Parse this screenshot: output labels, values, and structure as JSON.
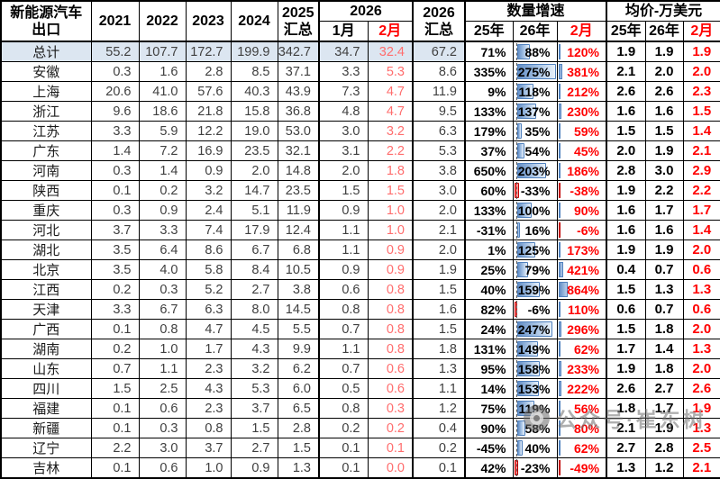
{
  "colors": {
    "total_row_fill": "#dce6f1",
    "databar_blue": "#638ec6",
    "databar_negative_red": "#ff4646",
    "accent_red_text": "#ff0000",
    "soft_red_text": "#ff6d6d",
    "number_text": "#3f3f3f"
  },
  "watermark": {
    "icon": "wechat-public-account-logo",
    "text": "公众号·崔东树"
  },
  "chart_data": {
    "type": "table",
    "header": {
      "corner_line1": "新能源汽车",
      "corner_line2": "出口",
      "years": [
        "2021",
        "2022",
        "2023",
        "2024"
      ],
      "total_2025_line1": "2025",
      "total_2025_line2": "汇总",
      "group_2026": "2026",
      "month_jan": "1月",
      "month_feb": "2月",
      "total_2026_line1": "2026",
      "total_2026_line2": "汇总",
      "growth_group": "数量增速",
      "growth_cols": [
        "25年",
        "26年",
        "2月"
      ],
      "price_group": "均价-万美元",
      "price_cols": [
        "25年",
        "26年",
        "2月"
      ]
    },
    "columns": [
      "新能源汽车出口",
      "2021",
      "2022",
      "2023",
      "2024",
      "2025汇总",
      "2026 1月",
      "2026 2月",
      "2026汇总",
      "数量增速 25年",
      "数量增速 26年",
      "数量增速 2月",
      "均价 25年",
      "均价 26年",
      "均价 2月"
    ],
    "rows": [
      [
        "总计",
        "55.2",
        "107.7",
        "172.7",
        "199.9",
        "342.7",
        "34.7",
        "32.4",
        "67.2",
        "71%",
        "88%",
        "120%",
        "1.9",
        "1.9",
        "1.9"
      ],
      [
        "安徽",
        "0.3",
        "1.6",
        "2.8",
        "8.5",
        "37.1",
        "3.3",
        "5.3",
        "8.6",
        "335%",
        "275%",
        "381%",
        "2.1",
        "2.0",
        "2.0"
      ],
      [
        "上海",
        "20.6",
        "41.0",
        "57.6",
        "40.3",
        "43.9",
        "7.3",
        "4.7",
        "11.9",
        "9%",
        "118%",
        "212%",
        "2.6",
        "2.6",
        "2.3"
      ],
      [
        "浙江",
        "9.6",
        "18.6",
        "21.8",
        "15.8",
        "36.8",
        "4.8",
        "4.7",
        "9.5",
        "133%",
        "137%",
        "230%",
        "1.6",
        "1.6",
        "1.5"
      ],
      [
        "江苏",
        "3.3",
        "5.9",
        "12.2",
        "19.0",
        "53.0",
        "3.0",
        "3.2",
        "6.3",
        "179%",
        "35%",
        "59%",
        "1.5",
        "1.5",
        "1.4"
      ],
      [
        "广东",
        "1.4",
        "7.2",
        "16.9",
        "23.5",
        "32.1",
        "3.1",
        "2.2",
        "5.3",
        "37%",
        "54%",
        "45%",
        "2.0",
        "1.9",
        "2.1"
      ],
      [
        "河南",
        "0.3",
        "1.4",
        "0.9",
        "2.0",
        "14.8",
        "2.0",
        "1.8",
        "3.8",
        "650%",
        "203%",
        "186%",
        "2.8",
        "3.0",
        "2.9"
      ],
      [
        "陕西",
        "0.1",
        "0.2",
        "3.2",
        "14.7",
        "23.5",
        "1.5",
        "1.5",
        "3.0",
        "60%",
        "-33%",
        "-38%",
        "1.9",
        "2.2",
        "2.2"
      ],
      [
        "重庆",
        "0.3",
        "0.9",
        "2.4",
        "5.1",
        "11.9",
        "0.9",
        "1.0",
        "2.0",
        "133%",
        "100%",
        "90%",
        "1.6",
        "1.7",
        "1.7"
      ],
      [
        "河北",
        "3.7",
        "3.3",
        "7.4",
        "17.9",
        "12.4",
        "1.1",
        "1.0",
        "2.1",
        "-31%",
        "16%",
        "-6%",
        "1.6",
        "1.6",
        "1.4"
      ],
      [
        "湖北",
        "3.5",
        "6.4",
        "8.6",
        "6.7",
        "6.8",
        "1.1",
        "0.9",
        "2.0",
        "1%",
        "125%",
        "173%",
        "1.9",
        "1.9",
        "2.0"
      ],
      [
        "北京",
        "3.5",
        "4.0",
        "5.8",
        "8.4",
        "10.5",
        "0.9",
        "0.9",
        "1.9",
        "25%",
        "79%",
        "421%",
        "0.4",
        "0.7",
        "0.6"
      ],
      [
        "江西",
        "0.2",
        "0.3",
        "5.2",
        "2.7",
        "3.8",
        "0.6",
        "0.8",
        "1.5",
        "40%",
        "159%",
        "864%",
        "1.5",
        "1.3",
        "1.3"
      ],
      [
        "天津",
        "3.3",
        "6.7",
        "6.3",
        "8.0",
        "14.5",
        "0.8",
        "0.8",
        "1.6",
        "82%",
        "-6%",
        "110%",
        "0.6",
        "0.7",
        "0.6"
      ],
      [
        "广西",
        "0.1",
        "0.8",
        "4.7",
        "4.5",
        "5.5",
        "0.7",
        "0.8",
        "1.5",
        "24%",
        "247%",
        "296%",
        "1.5",
        "1.8",
        "2.0"
      ],
      [
        "湖南",
        "0.2",
        "1.0",
        "1.7",
        "4.3",
        "9.9",
        "1.1",
        "0.8",
        "1.8",
        "131%",
        "149%",
        "62%",
        "1.7",
        "1.4",
        "1.3"
      ],
      [
        "山东",
        "0.7",
        "1.1",
        "2.3",
        "3.2",
        "6.2",
        "0.7",
        "0.6",
        "1.3",
        "95%",
        "158%",
        "233%",
        "1.9",
        "1.8",
        "2.0"
      ],
      [
        "四川",
        "1.5",
        "2.5",
        "4.3",
        "5.3",
        "6.0",
        "0.5",
        "0.6",
        "1.1",
        "14%",
        "153%",
        "222%",
        "2.6",
        "2.7",
        "2.6"
      ],
      [
        "福建",
        "0.1",
        "0.6",
        "2.3",
        "3.7",
        "6.5",
        "0.8",
        "0.3",
        "1.2",
        "75%",
        "119%",
        "56%",
        "1.8",
        "1.7",
        "1.9"
      ],
      [
        "新疆",
        "0.1",
        "0.3",
        "0.8",
        "1.5",
        "2.8",
        "0.2",
        "0.2",
        "0.4",
        "90%",
        "58%",
        "80%",
        "2.1",
        "1.9",
        "1.3"
      ],
      [
        "辽宁",
        "2.2",
        "3.0",
        "3.7",
        "2.7",
        "1.5",
        "0.1",
        "0.1",
        "0.2",
        "-45%",
        "40%",
        "62%",
        "2.7",
        "2.8",
        "2.5"
      ],
      [
        "吉林",
        "0.1",
        "0.6",
        "1.0",
        "0.9",
        "1.3",
        "0.1",
        "0.0",
        "0.1",
        "42%",
        "-23%",
        "-49%",
        "1.3",
        "1.2",
        "2.1"
      ]
    ]
  }
}
